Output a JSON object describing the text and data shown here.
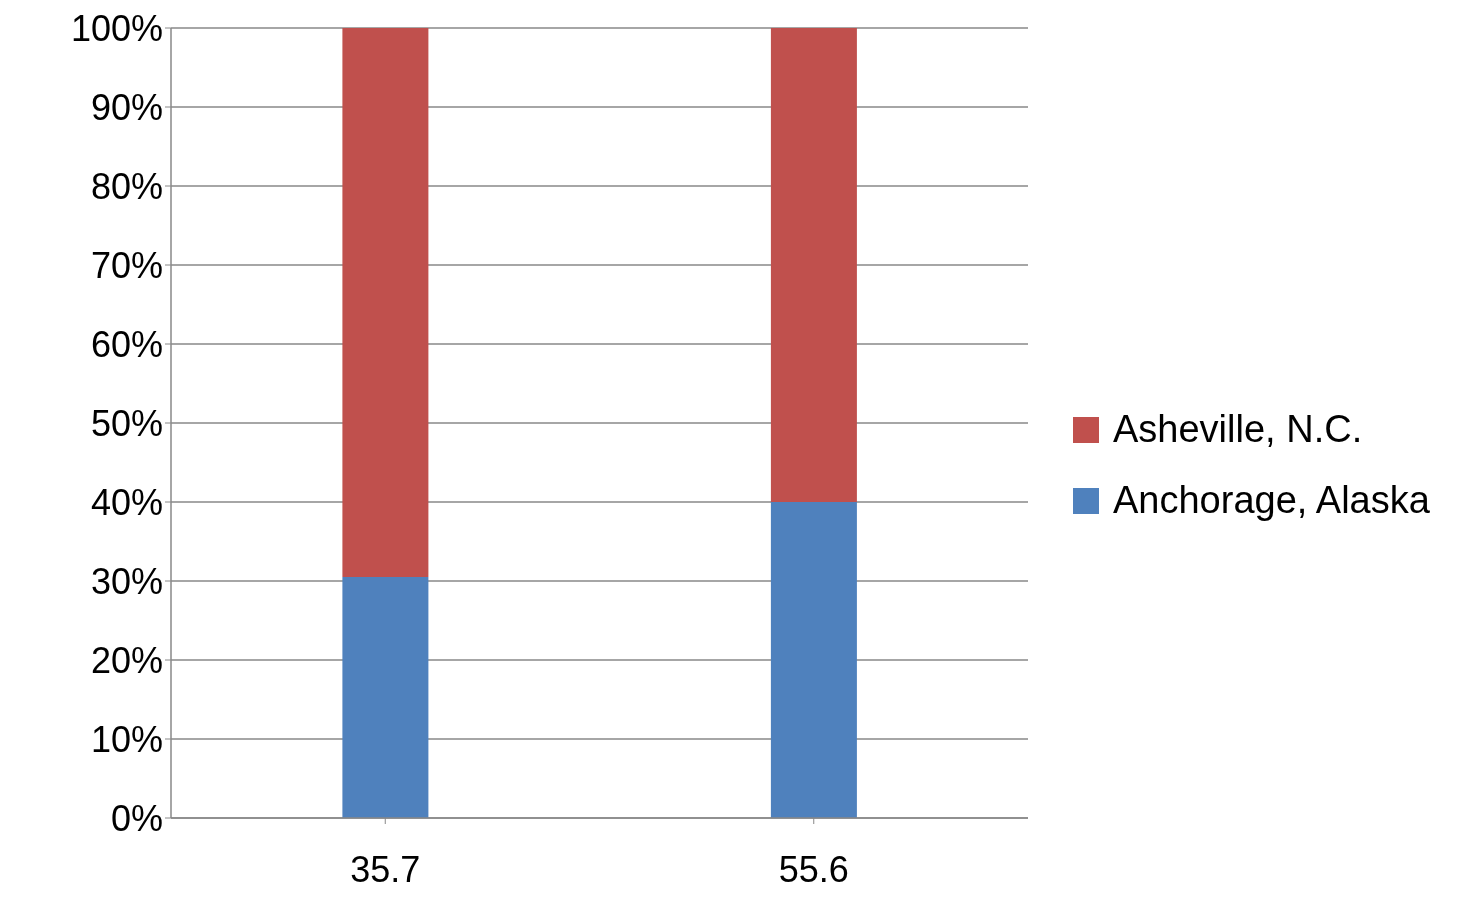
{
  "chart_data": {
    "type": "bar",
    "stacked": true,
    "categories": [
      "35.7",
      "55.6"
    ],
    "series": [
      {
        "name": "Anchorage, Alaska",
        "color": "#4f81bd",
        "values": [
          30.5,
          40
        ]
      },
      {
        "name": "Asheville, N.C.",
        "color": "#c0504d",
        "values": [
          69.5,
          60
        ]
      }
    ],
    "ylim": [
      0,
      100
    ],
    "yticks": [
      {
        "value": 0,
        "label": "0%"
      },
      {
        "value": 10,
        "label": "10%"
      },
      {
        "value": 20,
        "label": "20%"
      },
      {
        "value": 30,
        "label": "30%"
      },
      {
        "value": 40,
        "label": "40%"
      },
      {
        "value": 50,
        "label": "50%"
      },
      {
        "value": 60,
        "label": "60%"
      },
      {
        "value": 70,
        "label": "70%"
      },
      {
        "value": 80,
        "label": "80%"
      },
      {
        "value": 90,
        "label": "90%"
      },
      {
        "value": 100,
        "label": "100%"
      }
    ],
    "grid": "y",
    "legend": "right"
  }
}
